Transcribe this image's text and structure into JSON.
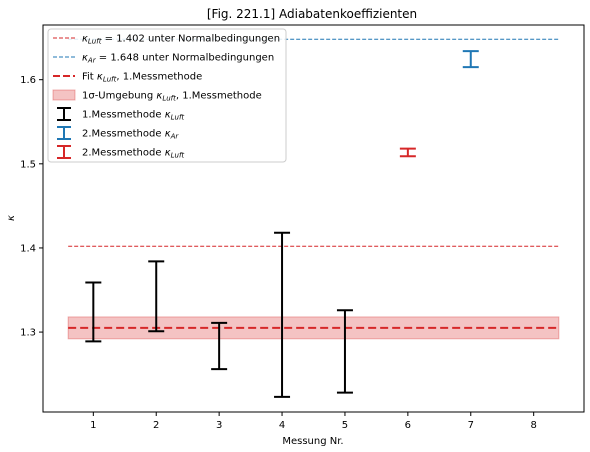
{
  "chart_data": {
    "type": "scatter",
    "title": "[Fig. 221.1] Adiabatenkoeffizienten",
    "xlabel": "Messung Nr.",
    "ylabel": "κ",
    "xlim": [
      0.2,
      8.8
    ],
    "ylim": [
      1.205,
      1.665
    ],
    "x_ticks": [
      1,
      2,
      3,
      4,
      5,
      6,
      7,
      8
    ],
    "y_ticks": [
      1.3,
      1.4,
      1.5,
      1.6
    ],
    "grid": false,
    "legend_position": "top-left",
    "reference_lines": [
      {
        "name": "κLuft = 1.402 unter Normalbedingungen",
        "y": 1.402,
        "x_range": [
          0.6,
          8.4
        ],
        "color": "#d62728",
        "style": "dashed-thin"
      },
      {
        "name": "κAr = 1.648 unter Normalbedingungen",
        "y": 1.648,
        "x_range": [
          0.6,
          8.4
        ],
        "color": "#1f77b4",
        "style": "dashed-thin"
      }
    ],
    "fit": {
      "name": "Fit κLuft, 1.Messmethode",
      "y": 1.305,
      "x_range": [
        0.6,
        8.4
      ],
      "color": "#d62728"
    },
    "band": {
      "name": "1σ-Umgebung κLuft, 1.Messmethode",
      "y_low": 1.292,
      "y_high": 1.318,
      "x_range": [
        0.6,
        8.4
      ],
      "color": "#d62728"
    },
    "series": [
      {
        "name": "1.Messmethode κLuft",
        "color": "#000000",
        "points": [
          {
            "x": 1,
            "low": 1.289,
            "high": 1.359
          },
          {
            "x": 2,
            "low": 1.301,
            "high": 1.384
          },
          {
            "x": 3,
            "low": 1.256,
            "high": 1.311
          },
          {
            "x": 4,
            "low": 1.223,
            "high": 1.418
          },
          {
            "x": 5,
            "low": 1.228,
            "high": 1.326
          }
        ]
      },
      {
        "name": "2.Messmethode κAr",
        "color": "#1f77b4",
        "points": [
          {
            "x": 7,
            "low": 1.615,
            "high": 1.634
          }
        ]
      },
      {
        "name": "2.Messmethode κLuft",
        "color": "#d62728",
        "points": [
          {
            "x": 6,
            "low": 1.509,
            "high": 1.518
          }
        ]
      }
    ]
  },
  "legend": [
    {
      "kind": "thin-dashed",
      "color": "#d62728",
      "sym": "κ",
      "sub": "Luft",
      "text": " = 1.402 unter Normalbedingungen",
      "pre": ""
    },
    {
      "kind": "thin-dashed",
      "color": "#1f77b4",
      "sym": "κ",
      "sub": "Ar",
      "text": " = 1.648 unter Normalbedingungen",
      "pre": ""
    },
    {
      "kind": "thick-dashed",
      "color": "#d62728",
      "pre": "Fit ",
      "sym": "κ",
      "sub": "Luft",
      "text": ", 1.Messmethode"
    },
    {
      "kind": "patch",
      "color": "#d62728",
      "pre": "1σ-Umgebung ",
      "sym": "κ",
      "sub": "Luft",
      "text": ", 1.Messmethode"
    },
    {
      "kind": "errorbar",
      "color": "#000000",
      "pre": "1.Messmethode ",
      "sym": "κ",
      "sub": "Luft",
      "text": ""
    },
    {
      "kind": "errorbar",
      "color": "#1f77b4",
      "pre": "2.Messmethode ",
      "sym": "κ",
      "sub": "Ar",
      "text": ""
    },
    {
      "kind": "errorbar",
      "color": "#d62728",
      "pre": "2.Messmethode ",
      "sym": "κ",
      "sub": "Luft",
      "text": ""
    }
  ]
}
